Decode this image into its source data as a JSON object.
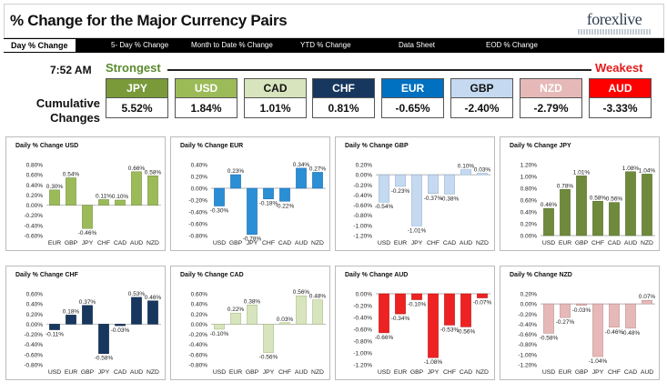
{
  "header": {
    "title": "% Change for the Major Currency Pairs",
    "logo_text": "forexlive"
  },
  "tabs": [
    {
      "label": "Day % Change",
      "active": true
    },
    {
      "label": "5- Day % Change",
      "active": false
    },
    {
      "label": "Month to Date % Change",
      "active": false
    },
    {
      "label": "YTD % Change",
      "active": false
    },
    {
      "label": "Data Sheet",
      "active": false
    },
    {
      "label": "EOD % Change",
      "active": false
    }
  ],
  "summary": {
    "time": "7:52 AM",
    "strongest_label": "Strongest",
    "weakest_label": "Weakest",
    "cumulative_label_1": "Cumulative",
    "cumulative_label_2": "Changes",
    "ranking": [
      {
        "code": "JPY",
        "value": "5.52%",
        "bg": "#7a9a3a",
        "fg": "#ffffff"
      },
      {
        "code": "USD",
        "value": "1.84%",
        "bg": "#9bbb59",
        "fg": "#ffffff"
      },
      {
        "code": "CAD",
        "value": "1.01%",
        "bg": "#d7e4bd",
        "fg": "#111111"
      },
      {
        "code": "CHF",
        "value": "0.81%",
        "bg": "#17375e",
        "fg": "#ffffff"
      },
      {
        "code": "EUR",
        "value": "-0.65%",
        "bg": "#0070c0",
        "fg": "#ffffff"
      },
      {
        "code": "GBP",
        "value": "-2.40%",
        "bg": "#c5d9f1",
        "fg": "#111111"
      },
      {
        "code": "NZD",
        "value": "-2.79%",
        "bg": "#e6b9b8",
        "fg": "#ffffff"
      },
      {
        "code": "AUD",
        "value": "-3.33%",
        "bg": "#ff0000",
        "fg": "#ffffff"
      }
    ]
  },
  "chart_data": [
    {
      "type": "bar",
      "title": "Daily % Change USD",
      "categories": [
        "EUR",
        "GBP",
        "JPY",
        "CHF",
        "CAD",
        "AUD",
        "NZD"
      ],
      "values": [
        0.3,
        0.54,
        -0.46,
        0.11,
        0.1,
        0.66,
        0.58
      ],
      "labels": [
        "0.30%",
        "0.54%",
        "-0.46%",
        "0.11%",
        "0.10%",
        "0.66%",
        "0.58%"
      ],
      "yticks": [
        "0.80%",
        "0.60%",
        "0.40%",
        "0.20%",
        "0.00%",
        "-0.20%",
        "-0.40%",
        "-0.60%"
      ],
      "ylim": [
        -0.6,
        0.8
      ],
      "color": "#9bbb59",
      "dark": "#6f8a3c",
      "highlight": "#77933c",
      "negIndex": -1
    },
    {
      "type": "bar",
      "title": "Daily % Change EUR",
      "categories": [
        "USD",
        "GBP",
        "JPY",
        "CHF",
        "CAD",
        "AUD",
        "NZD"
      ],
      "values": [
        -0.3,
        0.23,
        -0.78,
        -0.18,
        -0.22,
        0.34,
        0.27
      ],
      "labels": [
        "-0.30%",
        "0.23%",
        "-0.78%",
        "-0.18%",
        "-0.22%",
        "0.34%",
        "0.27%"
      ],
      "yticks": [
        "0.40%",
        "0.20%",
        "0.00%",
        "-0.20%",
        "-0.40%",
        "-0.60%",
        "-0.80%"
      ],
      "ylim": [
        -0.8,
        0.4
      ],
      "color": "#2b8fd6",
      "dark": "#1565a8",
      "highlight": "#0070c0",
      "negIndex": -1
    },
    {
      "type": "bar",
      "title": "Daily % Change GBP",
      "categories": [
        "USD",
        "EUR",
        "JPY",
        "CHF",
        "CAD",
        "AUD",
        "NZD"
      ],
      "values": [
        -0.54,
        -0.23,
        -1.01,
        -0.37,
        -0.38,
        0.1,
        0.03
      ],
      "labels": [
        "-0.54%",
        "-0.23%",
        "-1.01%",
        "-0.37%",
        "-0.38%",
        "0.10%",
        "0.03%"
      ],
      "yticks": [
        "0.20%",
        "0.00%",
        "-0.20%",
        "-0.40%",
        "-0.60%",
        "-0.80%",
        "-1.00%",
        "-1.20%"
      ],
      "ylim": [
        -1.2,
        0.2
      ],
      "color": "#c5d9f1",
      "dark": "#8ea9cc",
      "highlight": "#b8cce4",
      "negIndex": -1
    },
    {
      "type": "bar",
      "title": "Daily % Change JPY",
      "categories": [
        "USD",
        "EUR",
        "GBP",
        "CHF",
        "CAD",
        "AUD",
        "NZD"
      ],
      "values": [
        0.46,
        0.78,
        1.01,
        0.58,
        0.56,
        1.08,
        1.04
      ],
      "labels": [
        "0.46%",
        "0.78%",
        "1.01%",
        "0.58%",
        "0.56%",
        "1.08%",
        "1.04%"
      ],
      "yticks": [
        "1.20%",
        "1.00%",
        "0.80%",
        "0.60%",
        "0.40%",
        "0.20%",
        "0.00%"
      ],
      "ylim": [
        0,
        1.2
      ],
      "color": "#6f8a3c",
      "dark": "#4f6a25",
      "highlight": "#77933c",
      "negIndex": -1
    },
    {
      "type": "bar",
      "title": "Daily % Change CHF",
      "categories": [
        "USD",
        "EUR",
        "GBP",
        "JPY",
        "CAD",
        "AUD",
        "NZD"
      ],
      "values": [
        -0.11,
        0.18,
        0.37,
        -0.58,
        -0.03,
        0.53,
        0.46
      ],
      "labels": [
        "-0.11%",
        "0.18%",
        "0.37%",
        "-0.58%",
        "-0.03%",
        "0.53%",
        "0.46%"
      ],
      "yticks": [
        "0.60%",
        "0.40%",
        "0.20%",
        "0.00%",
        "-0.20%",
        "-0.40%",
        "-0.60%",
        "-0.80%"
      ],
      "ylim": [
        -0.8,
        0.6
      ],
      "color": "#17375e",
      "dark": "#0c223d",
      "highlight": "#1f4e79",
      "negIndex": -1
    },
    {
      "type": "bar",
      "title": "Daily % Change CAD",
      "categories": [
        "USD",
        "EUR",
        "GBP",
        "JPY",
        "CHF",
        "AUD",
        "NZD"
      ],
      "values": [
        -0.1,
        0.22,
        0.38,
        -0.56,
        0.03,
        0.56,
        0.48
      ],
      "labels": [
        "-0.10%",
        "0.22%",
        "0.38%",
        "-0.56%",
        "0.03%",
        "0.56%",
        "0.48%"
      ],
      "yticks": [
        "0.60%",
        "0.40%",
        "0.20%",
        "0.00%",
        "-0.20%",
        "-0.40%",
        "-0.60%",
        "-0.80%"
      ],
      "ylim": [
        -0.8,
        0.6
      ],
      "color": "#d7e4bd",
      "dark": "#9fb878",
      "highlight": "#c3d69b",
      "negIndex": -1
    },
    {
      "type": "bar",
      "title": "Daily % Change AUD",
      "categories": [
        "USD",
        "EUR",
        "GBP",
        "JPY",
        "CHF",
        "CAD",
        "NZD"
      ],
      "values": [
        -0.66,
        -0.34,
        -0.1,
        -1.08,
        -0.53,
        -0.56,
        -0.07
      ],
      "labels": [
        "-0.66%",
        "-0.34%",
        "-0.10%",
        "-1.08%",
        "-0.53%",
        "-0.56%",
        "-0.07%"
      ],
      "yticks": [
        "0.00%",
        "-0.20%",
        "-0.40%",
        "-0.60%",
        "-0.80%",
        "-1.00%",
        "-1.20%"
      ],
      "ylim": [
        -1.2,
        0
      ],
      "color": "#ee2222",
      "dark": "#b01010",
      "highlight": "#ff0000",
      "negIndex": -1
    },
    {
      "type": "bar",
      "title": "Daily % Change NZD",
      "categories": [
        "USD",
        "EUR",
        "GBP",
        "JPY",
        "CHF",
        "CAD",
        "AUD"
      ],
      "values": [
        -0.58,
        -0.27,
        -0.03,
        -1.04,
        -0.46,
        -0.48,
        0.07
      ],
      "labels": [
        "-0.58%",
        "-0.27%",
        "-0.03%",
        "-1.04%",
        "-0.46%",
        "-0.48%",
        "0.07%"
      ],
      "yticks": [
        "0.20%",
        "0.00%",
        "-0.20%",
        "-0.40%",
        "-0.60%",
        "-0.80%",
        "-1.00%",
        "-1.20%"
      ],
      "ylim": [
        -1.2,
        0.2
      ],
      "color": "#e6b9b8",
      "dark": "#b78b8a",
      "highlight": "#d99694",
      "negIndex": -1
    }
  ]
}
